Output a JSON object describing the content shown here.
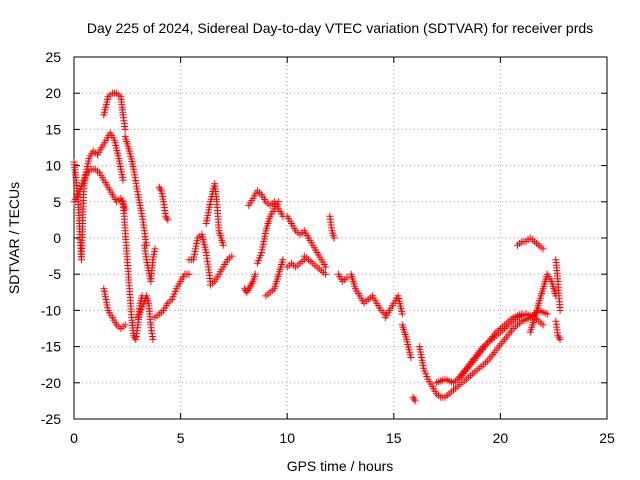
{
  "chart_data": {
    "type": "scatter",
    "title": "Day 225 of 2024, Sidereal Day-to-day VTEC variation (SDTVAR) for receiver prds",
    "xlabel": "GPS time / hours",
    "ylabel": "SDTVAR / TECUs",
    "xlim": [
      0,
      25
    ],
    "ylim": [
      -25,
      25
    ],
    "xticks": [
      0,
      5,
      10,
      15,
      20,
      25
    ],
    "yticks": [
      -25,
      -20,
      -15,
      -10,
      -5,
      0,
      5,
      10,
      15,
      20,
      25
    ],
    "grid": true,
    "marker": "plus",
    "color": "#ff0000",
    "series": [
      {
        "name": "prds",
        "segments": [
          {
            "x": [
              0.0,
              0.1,
              0.2,
              0.25,
              0.3,
              0.35,
              0.4,
              0.45,
              0.5
            ],
            "y": [
              10.5,
              8.0,
              5.0,
              2.0,
              -1.0,
              -3.0,
              2.0,
              6.0,
              8.0
            ]
          },
          {
            "x": [
              0.0,
              0.2,
              0.4,
              0.6,
              0.8,
              1.0,
              1.2,
              1.4,
              1.6,
              1.8,
              2.0,
              2.2,
              2.4
            ],
            "y": [
              5.0,
              6.0,
              7.5,
              9.0,
              9.5,
              9.5,
              9.0,
              8.0,
              7.0,
              6.0,
              5.0,
              5.5,
              4.0
            ]
          },
          {
            "x": [
              0.5,
              0.7,
              0.9,
              1.1,
              1.3,
              1.5,
              1.7,
              1.9,
              2.1,
              2.3
            ],
            "y": [
              8.0,
              11.0,
              12.0,
              11.5,
              12.5,
              13.5,
              14.5,
              13.5,
              11.0,
              8.0
            ]
          },
          {
            "x": [
              1.4,
              1.6,
              1.8,
              2.0,
              2.2,
              2.3,
              2.4
            ],
            "y": [
              17.0,
              19.5,
              20.0,
              20.0,
              19.5,
              17.0,
              15.0
            ]
          },
          {
            "x": [
              2.4,
              2.6,
              2.8,
              3.0,
              3.2,
              3.4
            ],
            "y": [
              14.0,
              12.0,
              9.5,
              6.0,
              3.0,
              -1.0
            ]
          },
          {
            "x": [
              2.3,
              2.4,
              2.5,
              2.6,
              2.7,
              2.8,
              2.9,
              3.0,
              3.1,
              3.2
            ],
            "y": [
              5.0,
              1.0,
              -3.0,
              -7.0,
              -11.0,
              -13.5,
              -14.0,
              -12.0,
              -9.0,
              -8.0
            ]
          },
          {
            "x": [
              1.4,
              1.6,
              1.8,
              2.0,
              2.2,
              2.4
            ],
            "y": [
              -7.0,
              -10.0,
              -11.0,
              -12.0,
              -12.5,
              -12.0
            ]
          },
          {
            "x": [
              3.0,
              3.2,
              3.4,
              3.5,
              3.6,
              3.7
            ],
            "y": [
              -11.0,
              -9.5,
              -8.0,
              -9.0,
              -12.0,
              -14.0
            ]
          },
          {
            "x": [
              3.3,
              3.4,
              3.5,
              3.6,
              3.7,
              3.8
            ],
            "y": [
              -1.0,
              -3.0,
              -4.5,
              -6.0,
              -3.0,
              -1.5
            ]
          },
          {
            "x": [
              4.0,
              4.1,
              4.2,
              4.3,
              4.4
            ],
            "y": [
              7.0,
              6.5,
              5.0,
              3.0,
              2.5
            ]
          },
          {
            "x": [
              3.8,
              4.0,
              4.2,
              4.4,
              4.6,
              4.8,
              5.0,
              5.2,
              5.4
            ],
            "y": [
              -11.0,
              -10.5,
              -10.0,
              -9.0,
              -8.5,
              -7.0,
              -6.0,
              -5.0,
              -5.0
            ]
          },
          {
            "x": [
              5.4,
              5.6,
              5.8,
              6.0,
              6.2,
              6.4
            ],
            "y": [
              -3.0,
              -3.0,
              0.0,
              0.5,
              -2.0,
              -6.0
            ]
          },
          {
            "x": [
              6.2,
              6.4,
              6.6,
              6.7,
              6.8,
              7.0
            ],
            "y": [
              2.0,
              5.0,
              7.5,
              5.0,
              1.0,
              -1.0
            ]
          },
          {
            "x": [
              6.4,
              6.6,
              6.8,
              7.0,
              7.2,
              7.4
            ],
            "y": [
              -6.5,
              -6.0,
              -5.0,
              -4.0,
              -3.0,
              -2.5
            ]
          },
          {
            "x": [
              8.0,
              8.1,
              8.2,
              8.3,
              8.4,
              8.5
            ],
            "y": [
              -7.0,
              -7.5,
              -7.0,
              -6.5,
              -6.0,
              -5.0
            ]
          },
          {
            "x": [
              8.6,
              8.8,
              9.0,
              9.2,
              9.4,
              9.6
            ],
            "y": [
              -3.5,
              -2.0,
              1.0,
              3.0,
              4.0,
              5.0
            ]
          },
          {
            "x": [
              8.2,
              8.4,
              8.6,
              8.8,
              9.0,
              9.2,
              9.4,
              9.6,
              9.8
            ],
            "y": [
              4.5,
              5.5,
              6.5,
              6.0,
              5.0,
              4.5,
              5.0,
              4.0,
              3.0
            ]
          },
          {
            "x": [
              9.0,
              9.2,
              9.4,
              9.6,
              9.8
            ],
            "y": [
              -8.0,
              -7.5,
              -7.0,
              -5.0,
              -3.0
            ]
          },
          {
            "x": [
              10.0,
              10.2,
              10.4,
              10.6,
              10.8
            ],
            "y": [
              -4.0,
              -3.5,
              -4.0,
              -3.5,
              -3.0
            ]
          },
          {
            "x": [
              10.0,
              10.2,
              10.4,
              10.6,
              10.8,
              11.0,
              11.2,
              11.4,
              11.6,
              11.8
            ],
            "y": [
              3.0,
              2.0,
              1.0,
              0.5,
              1.0,
              0.0,
              -1.0,
              -2.0,
              -3.0,
              -4.0
            ]
          },
          {
            "x": [
              10.8,
              11.0,
              11.2,
              11.4,
              11.6,
              11.8
            ],
            "y": [
              -2.5,
              -3.0,
              -3.5,
              -4.0,
              -4.5,
              -5.0
            ]
          },
          {
            "x": [
              12.0,
              12.1,
              12.2
            ],
            "y": [
              3.0,
              1.0,
              0.0
            ]
          },
          {
            "x": [
              12.4,
              12.6,
              12.8
            ],
            "y": [
              -5.0,
              -6.0,
              -5.5
            ]
          },
          {
            "x": [
              13.0,
              13.2,
              13.4,
              13.6,
              13.8,
              14.0,
              14.2,
              14.4,
              14.6
            ],
            "y": [
              -5.0,
              -7.0,
              -8.0,
              -9.0,
              -8.5,
              -8.0,
              -9.0,
              -10.0,
              -10.5
            ]
          },
          {
            "x": [
              14.6,
              14.8,
              15.0,
              15.2,
              15.4
            ],
            "y": [
              -11.0,
              -10.0,
              -9.0,
              -8.0,
              -10.5
            ]
          },
          {
            "x": [
              15.4,
              15.6,
              15.8
            ],
            "y": [
              -12.0,
              -14.0,
              -16.5
            ]
          },
          {
            "x": [
              15.9,
              16.0
            ],
            "y": [
              -22.0,
              -22.5
            ]
          },
          {
            "x": [
              16.2,
              16.4,
              16.6,
              16.8,
              17.0,
              17.2,
              17.4,
              17.6,
              17.8
            ],
            "y": [
              -15.0,
              -18.0,
              -19.5,
              -20.5,
              -21.5,
              -22.0,
              -22.0,
              -21.5,
              -21.0
            ]
          },
          {
            "x": [
              17.8,
              18.2,
              18.6,
              19.0,
              19.4,
              19.8,
              20.2,
              20.6,
              21.0,
              21.4,
              21.8,
              22.2
            ],
            "y": [
              -21.0,
              -20.0,
              -19.0,
              -18.0,
              -17.0,
              -15.5,
              -14.0,
              -12.5,
              -11.5,
              -11.0,
              -10.0,
              -10.5
            ]
          },
          {
            "x": [
              17.0,
              17.4,
              17.8,
              18.2,
              18.6,
              19.0,
              19.4,
              19.8,
              20.2,
              20.6,
              21.0
            ],
            "y": [
              -20.0,
              -19.5,
              -20.0,
              -19.0,
              -17.5,
              -16.0,
              -14.5,
              -13.0,
              -12.0,
              -11.0,
              -10.5
            ]
          },
          {
            "x": [
              18.0,
              18.4,
              18.8,
              19.2,
              19.6,
              20.0,
              20.4,
              20.8,
              21.2,
              21.6,
              22.0
            ],
            "y": [
              -19.5,
              -18.0,
              -16.5,
              -15.0,
              -14.0,
              -13.0,
              -12.0,
              -11.0,
              -10.5,
              -11.0,
              -12.0
            ]
          },
          {
            "x": [
              20.8,
              21.0,
              21.2,
              21.4,
              21.6,
              21.8,
              22.0
            ],
            "y": [
              -1.0,
              -0.5,
              -0.5,
              0.0,
              -0.5,
              -1.0,
              -1.5
            ]
          },
          {
            "x": [
              21.4,
              21.6,
              21.8,
              22.0,
              22.2,
              22.4,
              22.6
            ],
            "y": [
              -13.0,
              -11.0,
              -9.0,
              -7.0,
              -5.0,
              -6.0,
              -8.0
            ]
          },
          {
            "x": [
              22.6,
              22.7,
              22.8
            ],
            "y": [
              -3.0,
              -6.0,
              -10.0
            ]
          },
          {
            "x": [
              22.6,
              22.7,
              22.8
            ],
            "y": [
              -11.5,
              -13.5,
              -14.0
            ]
          }
        ]
      }
    ]
  }
}
